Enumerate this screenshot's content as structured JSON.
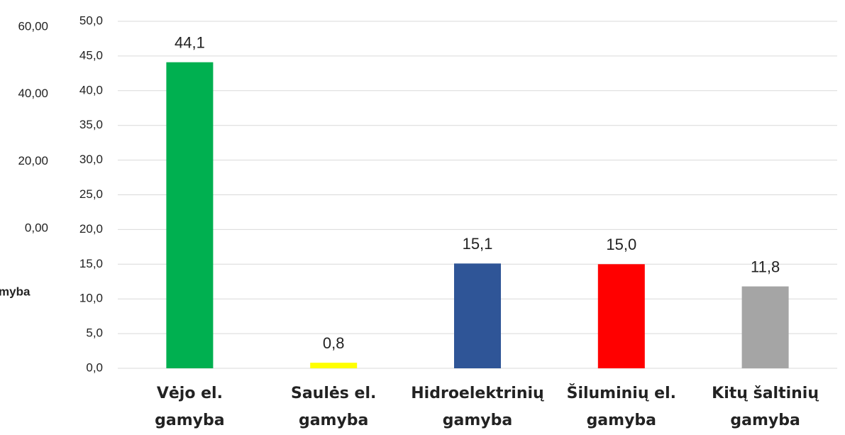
{
  "chart_data": [
    {
      "type": "bar",
      "categories": [
        "Vėjo el.\ngamyba",
        "Saulės el.\ngamyba",
        "Hidroelektrinių\ngamyba",
        "Šiluminių el.\ngamyba",
        "Kitų  šaltinių\ngamyba"
      ],
      "values": [
        44.1,
        0.8,
        15.1,
        15.0,
        11.8
      ],
      "value_labels": [
        "44,1",
        "0,8",
        "15,1",
        "15,0",
        "11,8"
      ],
      "colors": [
        "#00b050",
        "#ffff00",
        "#2f5597",
        "#ff0000",
        "#a5a5a5"
      ],
      "ylim": [
        0,
        50
      ],
      "yticks": [
        {
          "value": 0,
          "label": "0,0"
        },
        {
          "value": 5,
          "label": "5,0"
        },
        {
          "value": 10,
          "label": "10,0"
        },
        {
          "value": 15,
          "label": "15,0"
        },
        {
          "value": 20,
          "label": "20,0"
        },
        {
          "value": 25,
          "label": "25,0"
        },
        {
          "value": 30,
          "label": "30,0"
        },
        {
          "value": 35,
          "label": "35,0"
        },
        {
          "value": 40,
          "label": "40,0"
        },
        {
          "value": 45,
          "label": "45,0"
        },
        {
          "value": 50,
          "label": "50,0"
        }
      ],
      "grid": true
    },
    {
      "type": "bar",
      "categories": [
        "myba"
      ],
      "ylim": [
        0,
        60
      ],
      "yticks": [
        {
          "value": 0,
          "label": "0,00"
        },
        {
          "value": 20,
          "label": "20,00"
        },
        {
          "value": 40,
          "label": "40,00"
        },
        {
          "value": 60,
          "label": "60,00"
        }
      ],
      "grid": false
    }
  ]
}
